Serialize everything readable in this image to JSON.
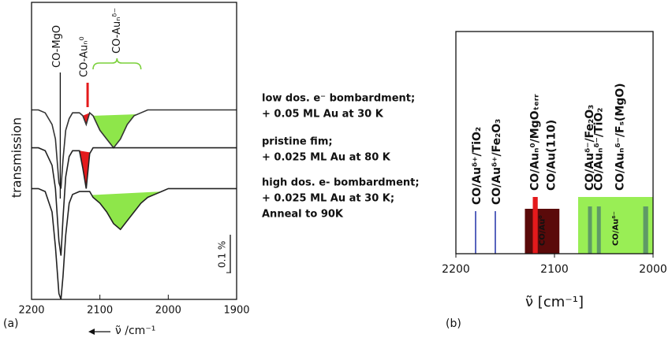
{
  "chart_data": [
    {
      "type": "line",
      "panel_label": "(a)",
      "xlabel": "ν̃ /cm⁻¹",
      "ylabel": "transmission",
      "xlim": [
        2200,
        1900
      ],
      "xticks": [
        2200,
        2100,
        2000,
        1900
      ],
      "ylim": [
        0,
        100
      ],
      "x": [
        2200,
        2190,
        2180,
        2170,
        2165,
        2160,
        2157,
        2154,
        2150,
        2145,
        2140,
        2130,
        2125,
        2120,
        2115,
        2110,
        2100,
        2090,
        2080,
        2070,
        2060,
        2050,
        2040,
        2030,
        2020,
        2010,
        2000,
        1980,
        1960,
        1940,
        1920,
        1900
      ],
      "series": [
        {
          "label": [
            "low dos. e⁻ bombardment;",
            "+ 0.05 ML Au at 30 K"
          ],
          "color": "#333333",
          "values": [
            65,
            65,
            64,
            60,
            55,
            40,
            38,
            48,
            58,
            62,
            64,
            64,
            63,
            60,
            64,
            63,
            58,
            55,
            52,
            55,
            60,
            63,
            64,
            65,
            65,
            65,
            65,
            65,
            65,
            65,
            65,
            65
          ],
          "fills": [
            {
              "range": [
                2125,
                2115
              ],
              "color": "#e41a1c"
            },
            {
              "range": [
                2110,
                2045
              ],
              "color": "#8ee64a"
            }
          ]
        },
        {
          "label": [
            "pristine fim;",
            "+ 0.025 ML Au at 80 K"
          ],
          "color": "#222222",
          "values": [
            52,
            52,
            51,
            46,
            38,
            20,
            15,
            28,
            42,
            49,
            51,
            51,
            45,
            38,
            50,
            52,
            52,
            52,
            52,
            52,
            52,
            52,
            52,
            52,
            52,
            52,
            52,
            52,
            52,
            52,
            52,
            52
          ],
          "fills": [
            {
              "range": [
                2130,
                2114
              ],
              "color": "#e41a1c"
            }
          ]
        },
        {
          "label": [
            "high dos. e- bombardment;",
            "+ 0.025 ML Au at 30 K;",
            "Anneal to 90K"
          ],
          "color": "#222222",
          "values": [
            38,
            38,
            37,
            30,
            18,
            2,
            0,
            8,
            22,
            33,
            36,
            37,
            37,
            37,
            37,
            35,
            33,
            30,
            26,
            24,
            27,
            30,
            33,
            35,
            36,
            37,
            38,
            38,
            38,
            38,
            38,
            38
          ],
          "fills": [
            {
              "range": [
                2112,
                2010
              ],
              "color": "#8ee64a"
            }
          ]
        }
      ],
      "annotations": [
        {
          "text": "CO-MgO",
          "x": 2158,
          "color": "#111111"
        },
        {
          "text": "CO-Auₙ⁰",
          "x": 2118,
          "color": "#e41a1c"
        },
        {
          "text": "CO-Auₙᵟ⁻",
          "range": [
            2110,
            2040
          ],
          "color": "#7ad03a"
        }
      ],
      "scale_bar": {
        "label": "0.1 %",
        "length": 13
      }
    },
    {
      "type": "band",
      "panel_label": "(b)",
      "xlabel": "ν̃ [cm⁻¹]",
      "xlim": [
        2200,
        2000
      ],
      "xticks": [
        2200,
        2100,
        2000
      ],
      "lines": [
        {
          "label": "CO/Auᵟ⁺/TiO₂",
          "x": 2180,
          "color": "#2030a8"
        },
        {
          "label": "CO/Auᵟ⁺/Fe₂O₃",
          "x": 2160,
          "color": "#2030a8"
        }
      ],
      "bands": [
        {
          "label": "CO/Au(110)",
          "range": [
            2130,
            2095
          ],
          "color": "#5a0a0a",
          "label_color": "#7a0000",
          "inner_label": "CO/Au⁰"
        },
        {
          "label": "CO/Auₙ⁰/MgOₜₑᵣᵣ",
          "range": [
            2122,
            2117
          ],
          "color": "#e41a1c",
          "label_color": "#e00000"
        },
        {
          "label": "CO/Auₙᵟ⁻/Fₛ(MgO)",
          "range": [
            2076,
            2000
          ],
          "color": "#99ee55",
          "label_color": "#7ad03a",
          "inner_label": "CO/Auᵟ⁻"
        },
        {
          "label": "CO/Auᵟ⁻/Fe₂O₃",
          "range": [
            2066,
            2062
          ],
          "color": "#5f9a66",
          "label_color": "#3c8c3c"
        },
        {
          "label": "CO/Auₙᵟ⁻/TiO₂",
          "range": [
            2057,
            2053
          ],
          "color": "#5f9a66",
          "label_color": "#3c8c3c"
        },
        {
          "range": [
            2010,
            2005
          ],
          "color": "#5f9a66"
        }
      ]
    }
  ]
}
